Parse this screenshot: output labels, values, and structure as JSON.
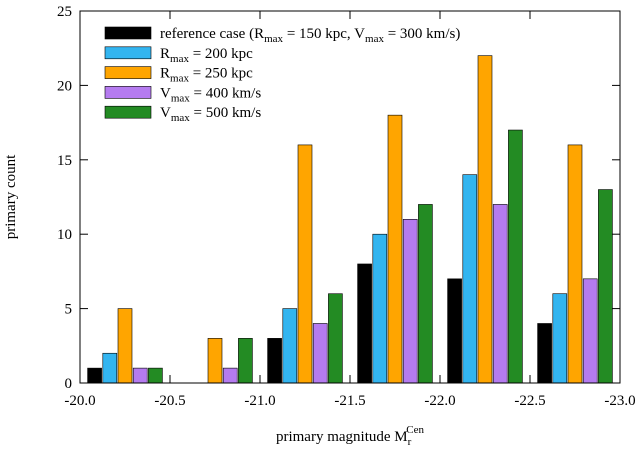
{
  "chart_data": {
    "type": "bar",
    "x_label": {
      "text": "primary magnitude M",
      "sub": "r",
      "sup": "Cen"
    },
    "y_label": "primary count",
    "x": [
      -20.25,
      -20.75,
      -21.25,
      -21.75,
      -22.25,
      -22.75
    ],
    "series": [
      {
        "name": "reference case (Rmax = 150 kpc, Vmax = 300 km/s)",
        "color": "#000000",
        "values": [
          1,
          0,
          3,
          8,
          7,
          4
        ]
      },
      {
        "name": "Rmax = 200 kpc",
        "color": "#33b5f0",
        "values": [
          2,
          0,
          5,
          10,
          14,
          6
        ]
      },
      {
        "name": "Rmax = 250 kpc",
        "color": "#ffa500",
        "values": [
          5,
          3,
          16,
          18,
          22,
          16
        ]
      },
      {
        "name": "Vmax = 400 km/s",
        "color": "#b57bf0",
        "values": [
          1,
          1,
          4,
          11,
          12,
          7
        ]
      },
      {
        "name": "Vmax = 500 km/s",
        "color": "#238b23",
        "values": [
          1,
          3,
          6,
          12,
          17,
          13
        ]
      }
    ],
    "xlim": [
      -20.0,
      -23.0
    ],
    "xticks": [
      {
        "value": -20.0,
        "label": "-20.0"
      },
      {
        "value": -20.5,
        "label": "-20.5"
      },
      {
        "value": -21.0,
        "label": "-21.0"
      },
      {
        "value": -21.5,
        "label": "-21.5"
      },
      {
        "value": -22.0,
        "label": "-22.0"
      },
      {
        "value": -22.5,
        "label": "-22.5"
      },
      {
        "value": -23.0,
        "label": "-23.0"
      }
    ],
    "ylim": [
      0,
      25
    ],
    "yticks": [
      0,
      5,
      10,
      15,
      20,
      25
    ],
    "legend": "upper left"
  }
}
